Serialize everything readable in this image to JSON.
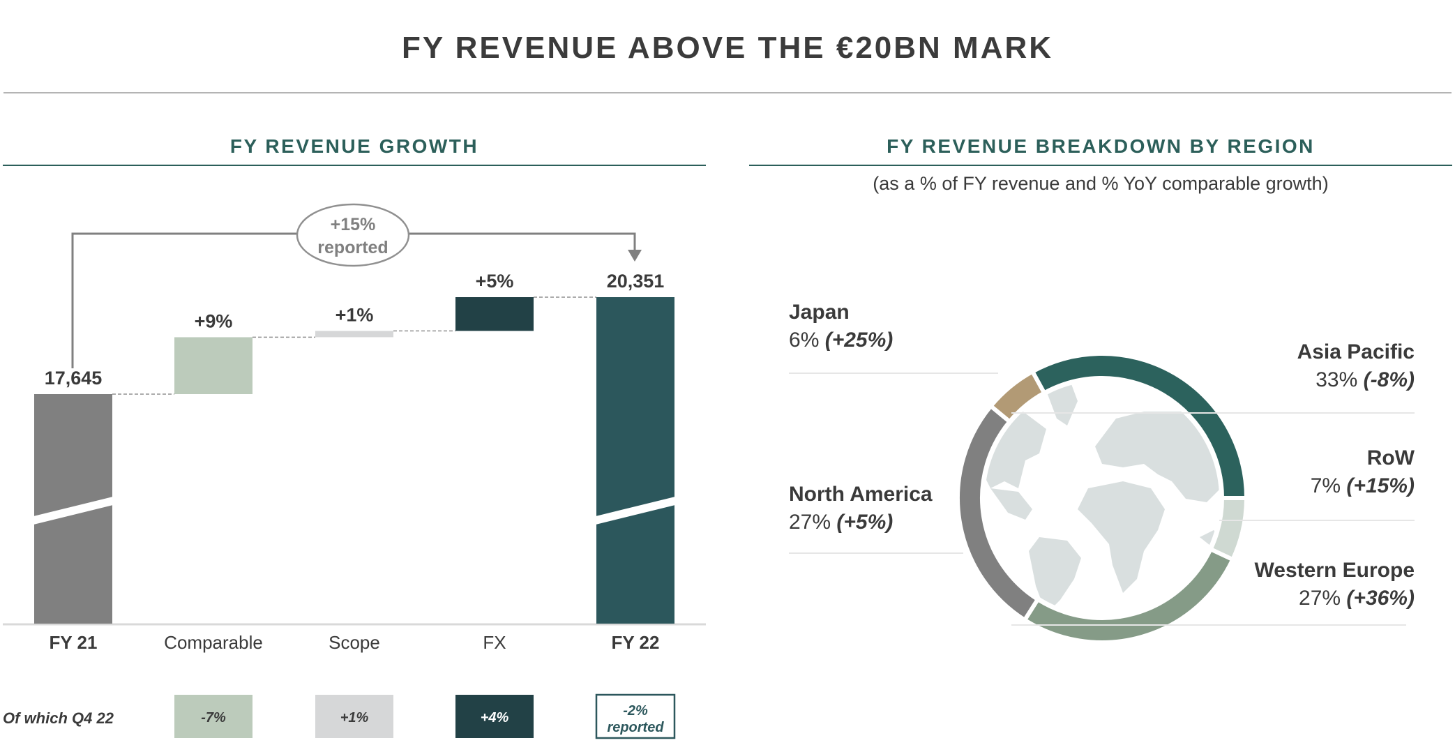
{
  "title": "FY REVENUE ABOVE THE €20BN MARK",
  "left_section": {
    "title": "FY REVENUE GROWTH"
  },
  "right_section": {
    "title": "FY REVENUE BREAKDOWN BY REGION",
    "subtitle": "(as a % of FY revenue and % YoY comparable growth)"
  },
  "chart_data": [
    {
      "type": "waterfall",
      "categories": [
        "FY 21",
        "Comparable",
        "Scope",
        "FX",
        "FY 22"
      ],
      "bars": [
        {
          "category": "FY 21",
          "kind": "total",
          "value": 17645,
          "label": "17,645",
          "color": "#808080"
        },
        {
          "category": "Comparable",
          "kind": "change",
          "pct": 9,
          "label": "+9%",
          "color": "#bccbbb"
        },
        {
          "category": "Scope",
          "kind": "change",
          "pct": 1,
          "label": "+1%",
          "color": "#d6d7d8"
        },
        {
          "category": "FX",
          "kind": "change",
          "pct": 5,
          "label": "+5%",
          "color": "#224146"
        },
        {
          "category": "FY 22",
          "kind": "total",
          "value": 20351,
          "label": "20,351",
          "color": "#2c575c"
        }
      ],
      "bracket": {
        "line1": "+15%",
        "line2": "reported"
      },
      "q4": {
        "label": "Of which Q4 22",
        "boxes": [
          {
            "category": "Comparable",
            "line1": "-7%",
            "line2": "",
            "bg": "#bccbbb",
            "fg": "#3a3a3a"
          },
          {
            "category": "Scope",
            "line1": "+1%",
            "line2": "",
            "bg": "#d6d7d8",
            "fg": "#3a3a3a"
          },
          {
            "category": "FX",
            "line1": "+4%",
            "line2": "",
            "bg": "#224146",
            "fg": "#ffffff"
          },
          {
            "category": "FY 22",
            "line1": "-2%",
            "line2": "reported",
            "bg": "#ffffff",
            "fg": "#2c575c",
            "border": "#2c575c"
          }
        ]
      }
    },
    {
      "type": "donut",
      "slices": [
        {
          "name": "RoW",
          "share": 7,
          "growth": "+15%",
          "color": "#cfd9d2"
        },
        {
          "name": "Western Europe",
          "share": 27,
          "growth": "+36%",
          "color": "#859b87"
        },
        {
          "name": "North America",
          "share": 27,
          "growth": "+5%",
          "color": "#808080"
        },
        {
          "name": "Japan",
          "share": 6,
          "growth": "+25%",
          "color": "#b29a75"
        },
        {
          "name": "Asia Pacific",
          "share": 33,
          "growth": "-8%",
          "color": "#2c625d"
        }
      ]
    }
  ]
}
